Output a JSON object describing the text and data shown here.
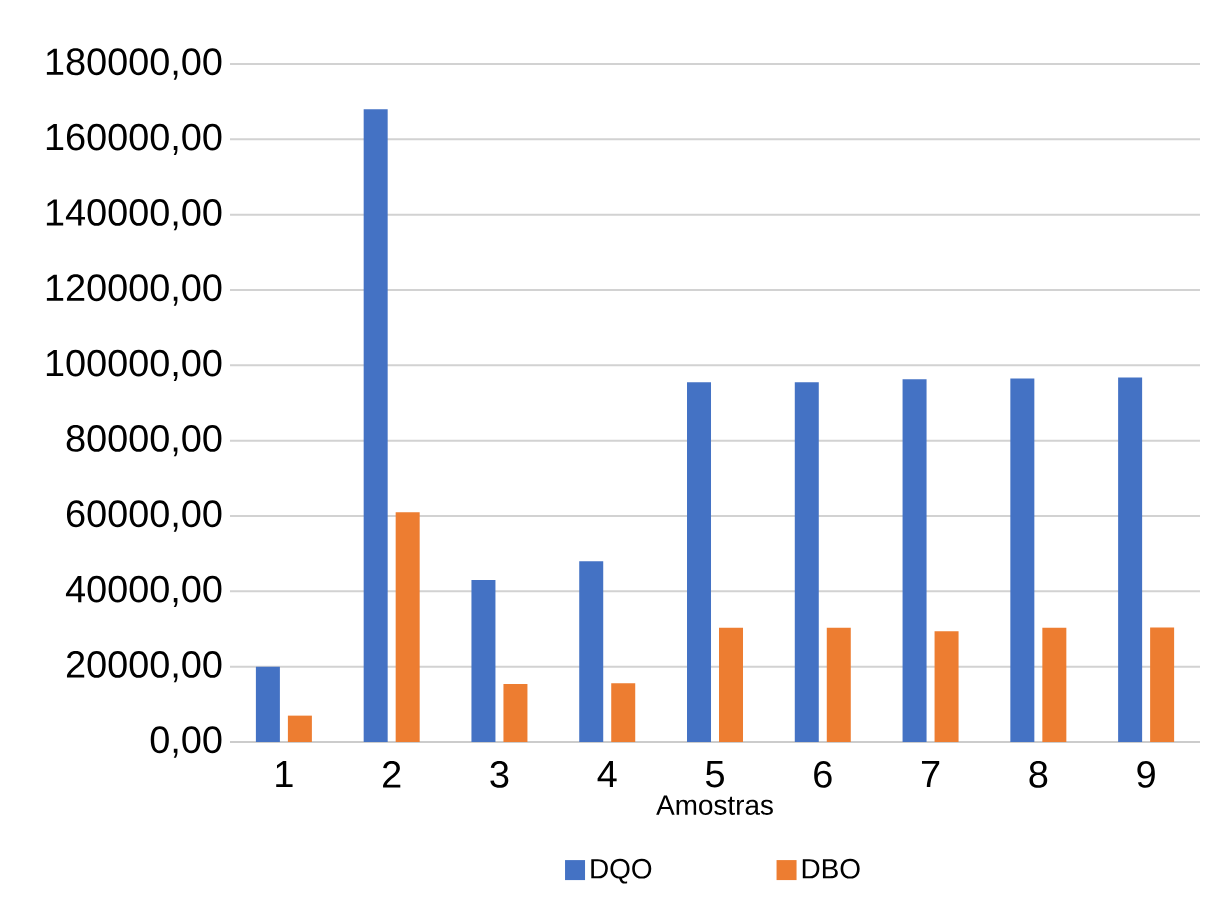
{
  "chart_data": {
    "type": "bar",
    "categories": [
      "1",
      "2",
      "3",
      "4",
      "5",
      "6",
      "7",
      "8",
      "9"
    ],
    "xlabel": "Amostras",
    "series": [
      {
        "name": "DQO",
        "color": "#4472c4",
        "values": [
          20000,
          168000,
          43000,
          48000,
          95500,
          95500,
          96300,
          96500,
          96800
        ]
      },
      {
        "name": "DBO",
        "color": "#ed7d31",
        "values": [
          7000,
          61000,
          15400,
          15600,
          30300,
          30300,
          29400,
          30300,
          30400
        ]
      }
    ],
    "ylim": [
      0,
      180000
    ],
    "yticks": [
      {
        "value": 0,
        "label": "0,00"
      },
      {
        "value": 20000,
        "label": "20000,00"
      },
      {
        "value": 40000,
        "label": "40000,00"
      },
      {
        "value": 60000,
        "label": "60000,00"
      },
      {
        "value": 80000,
        "label": "80000,00"
      },
      {
        "value": 100000,
        "label": "100000,00"
      },
      {
        "value": 120000,
        "label": "120000,00"
      },
      {
        "value": 140000,
        "label": "140000,00"
      },
      {
        "value": 160000,
        "label": "160000,00"
      },
      {
        "value": 180000,
        "label": "180000,00"
      }
    ],
    "grid": "y",
    "legend": "bottom"
  }
}
